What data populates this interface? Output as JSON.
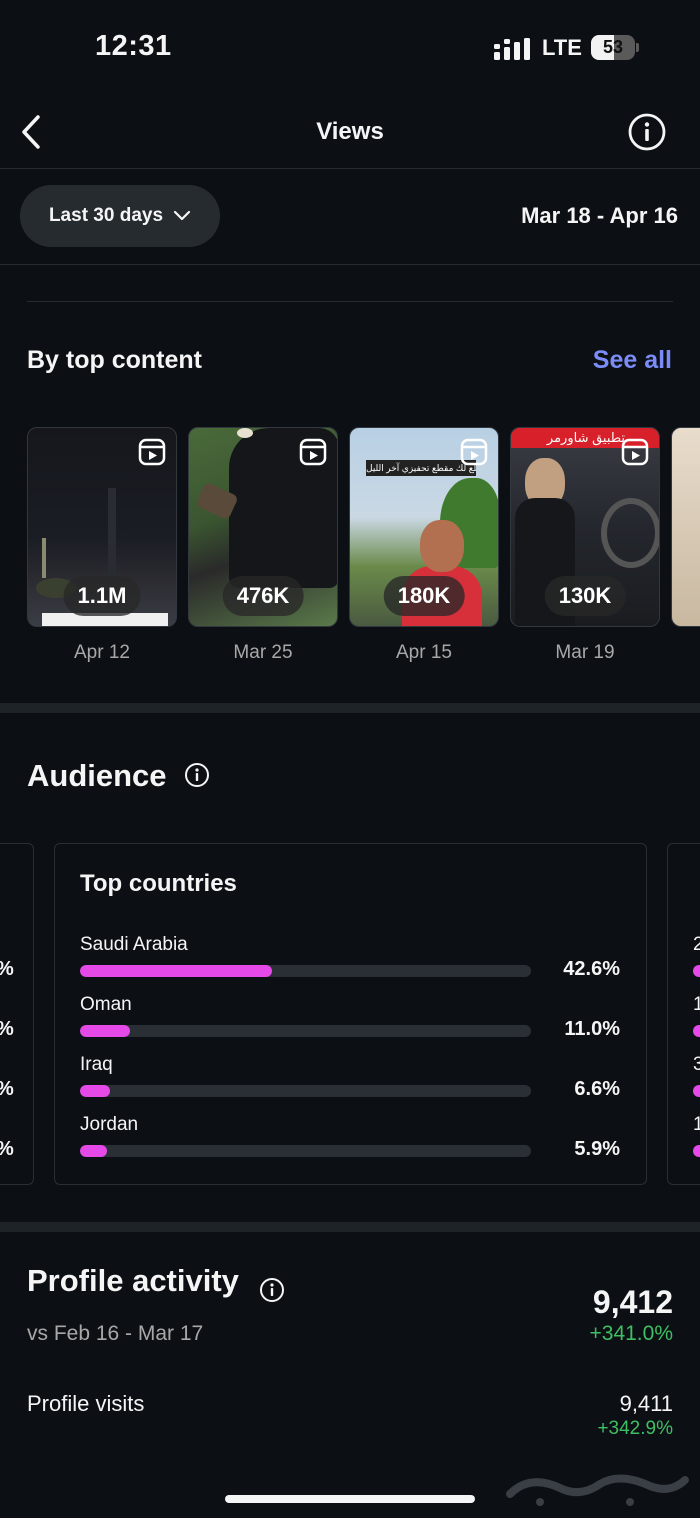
{
  "status_bar": {
    "time": "12:31",
    "network": "LTE",
    "battery": "53"
  },
  "nav": {
    "title": "Views"
  },
  "filter": {
    "period_label": "Last 30 days",
    "date_range": "Mar 18 - Apr 16"
  },
  "top_content": {
    "title": "By top content",
    "see_all": "See all",
    "items": [
      {
        "views": "1.1M",
        "date": "Apr 12"
      },
      {
        "views": "476K",
        "date": "Mar 25"
      },
      {
        "views": "180K",
        "date": "Apr 15",
        "caption": "طلع لك مقطع تحفيزي آخر الليل"
      },
      {
        "views": "130K",
        "date": "Mar 19",
        "caption": "تطبيق شاورمر"
      }
    ]
  },
  "audience": {
    "title": "Audience",
    "card_title": "Top countries",
    "countries": [
      {
        "name": "Saudi Arabia",
        "pct_label": "42.6%",
        "share": 0.426
      },
      {
        "name": "Oman",
        "pct_label": "11.0%",
        "share": 0.11
      },
      {
        "name": "Iraq",
        "pct_label": "6.6%",
        "share": 0.066
      },
      {
        "name": "Jordan",
        "pct_label": "5.9%",
        "share": 0.059
      }
    ],
    "side_digits": [
      "2",
      "1",
      "3",
      "1"
    ]
  },
  "profile_activity": {
    "title": "Profile activity",
    "compare": "vs Feb 16 - Mar 17",
    "total": "9,412",
    "total_change": "+341.0%",
    "rows": [
      {
        "label": "Profile visits",
        "value": "9,411",
        "change": "+342.9%"
      }
    ]
  },
  "colors": {
    "accent_link": "#7b8cf8",
    "bar": "#e54ae8",
    "positive": "#3fbf63",
    "background": "#0c1014"
  }
}
